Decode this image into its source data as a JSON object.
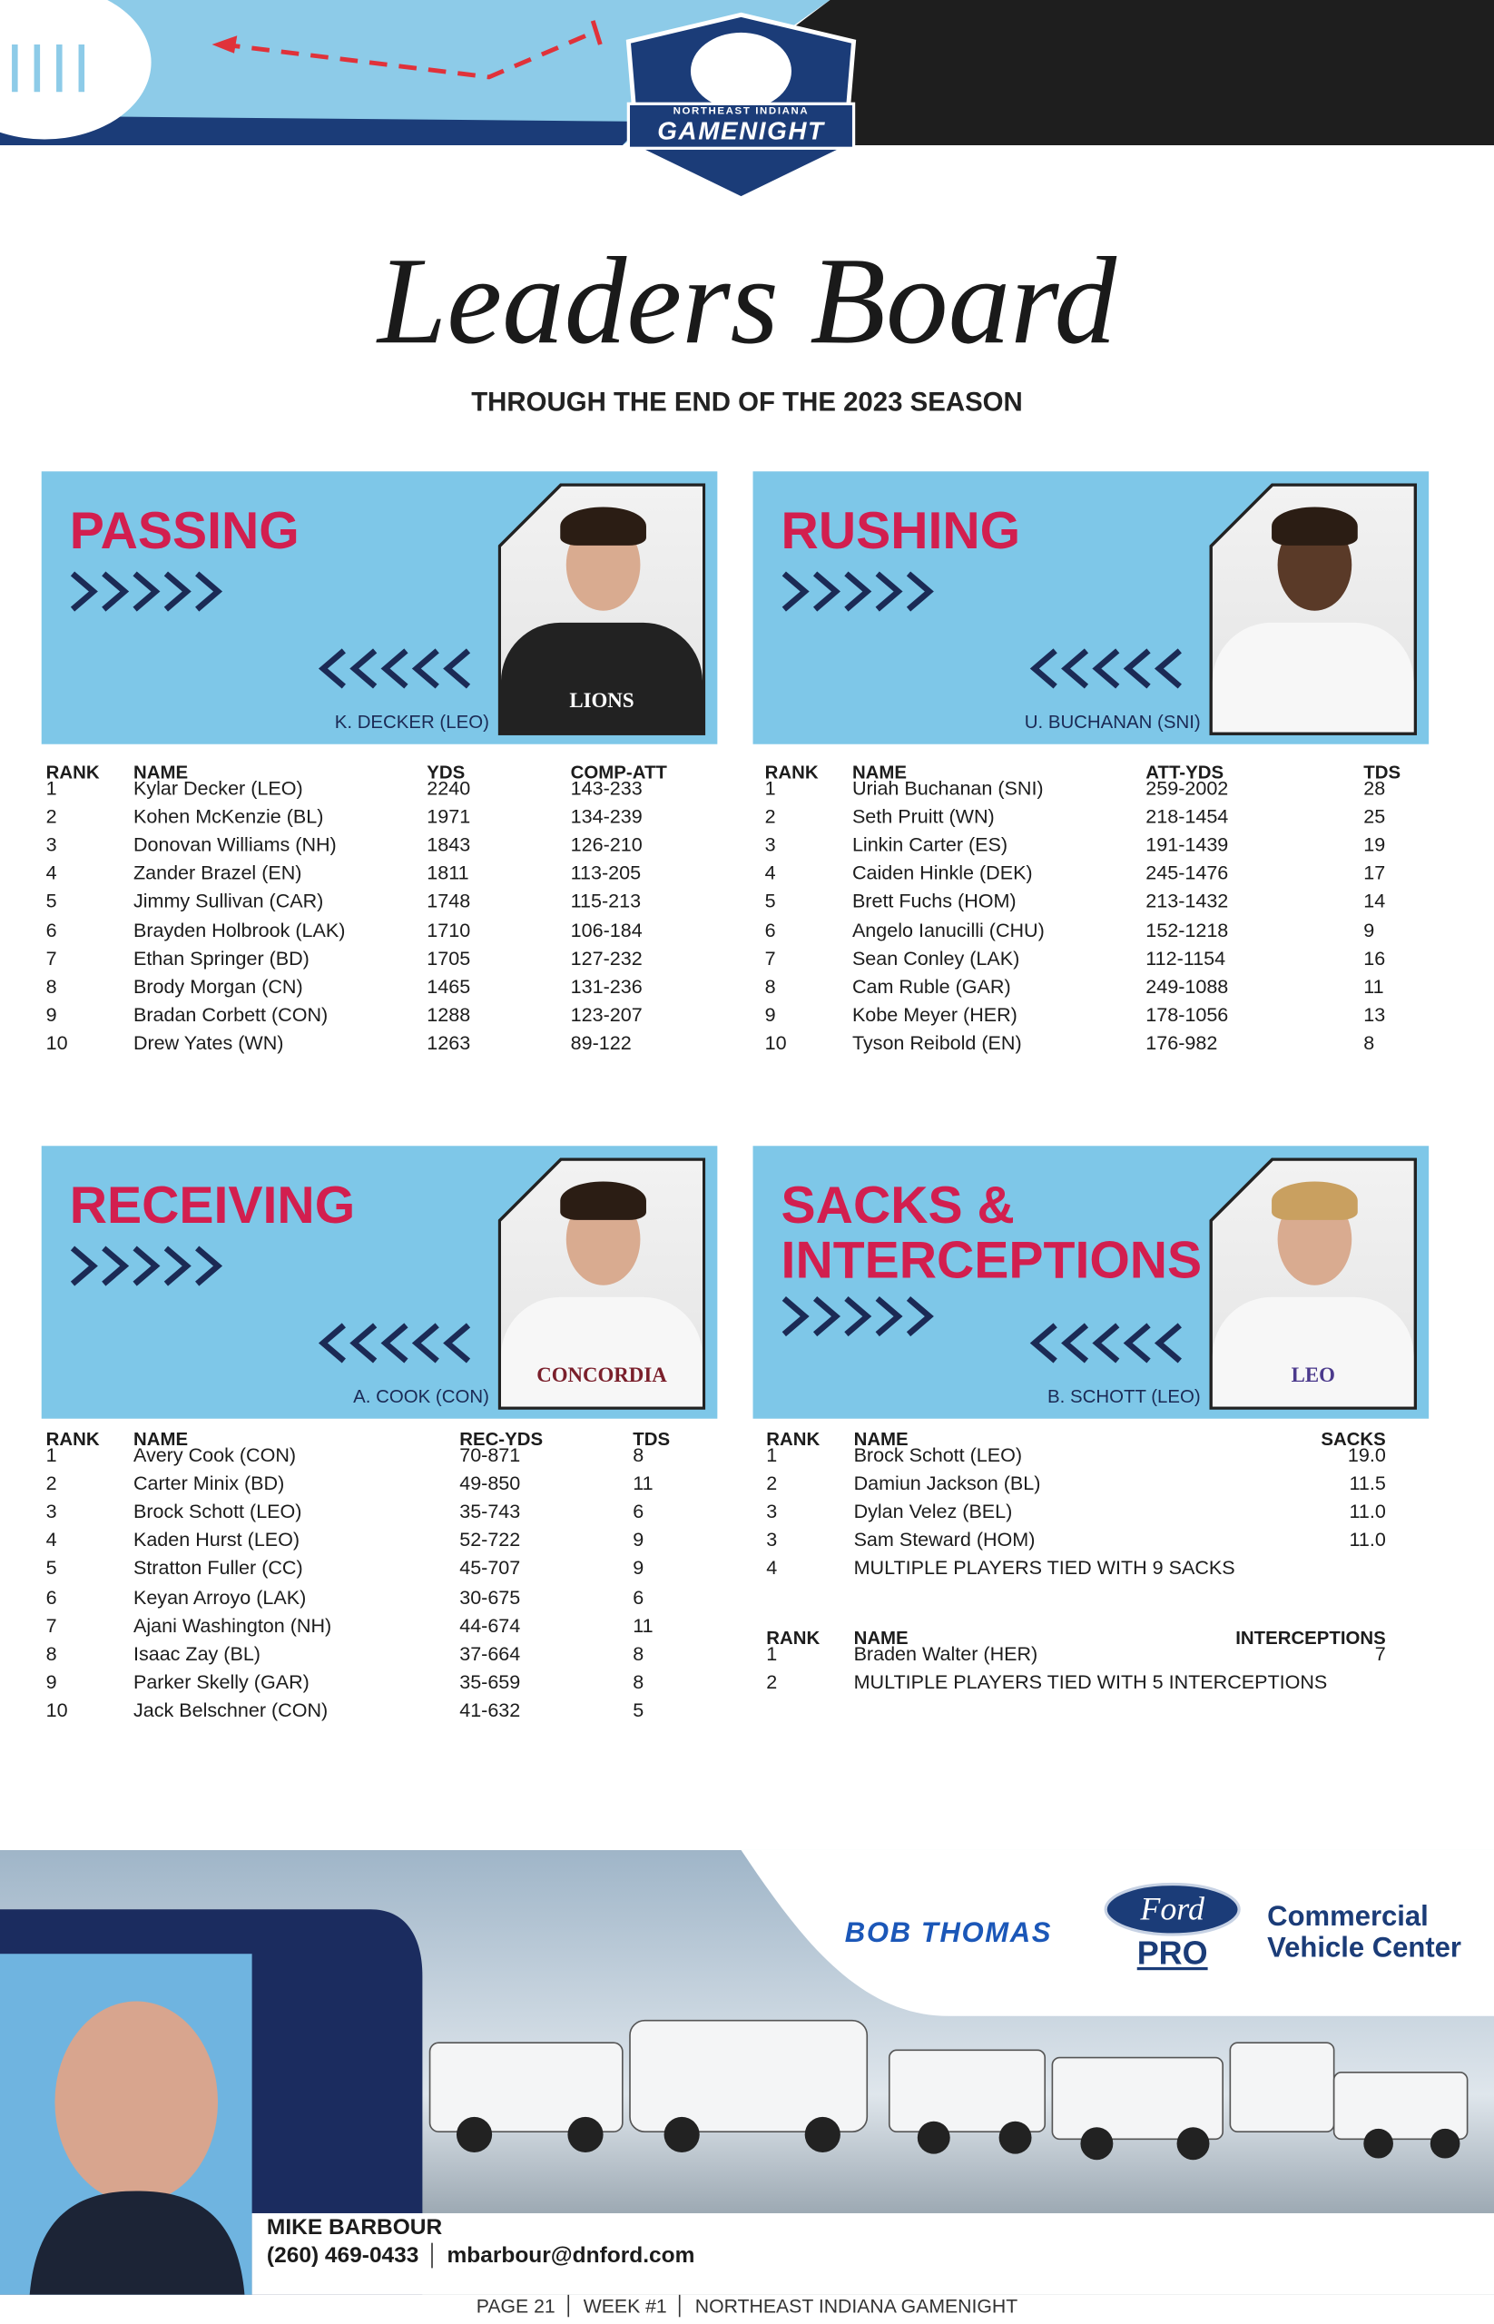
{
  "header": {
    "logo_top": "NORTHEAST INDIANA",
    "logo_main": "GAMENIGHT",
    "title": "Leaders Board",
    "subtitle": "THROUGH THE END OF THE 2023 SEASON"
  },
  "sections": [
    {
      "title": "PASSING",
      "photo_caption": "K. DECKER (LEO)",
      "jersey": "LIONS",
      "tables": [
        {
          "columns": [
            "RANK",
            "NAME",
            "YDS",
            "COMP-ATT"
          ],
          "rows": [
            [
              "1",
              "Kylar Decker (LEO)",
              "2240",
              "143-233"
            ],
            [
              "2",
              "Kohen McKenzie (BL)",
              "1971",
              "134-239"
            ],
            [
              "3",
              "Donovan Williams (NH)",
              "1843",
              "126-210"
            ],
            [
              "4",
              "Zander Brazel (EN)",
              "1811",
              "113-205"
            ],
            [
              "5",
              "Jimmy Sullivan (CAR)",
              "1748",
              "115-213"
            ],
            [
              "6",
              "Brayden Holbrook (LAK)",
              "1710",
              "106-184"
            ],
            [
              "7",
              "Ethan Springer (BD)",
              "1705",
              "127-232"
            ],
            [
              "8",
              "Brody Morgan (CN)",
              "1465",
              "131-236"
            ],
            [
              "9",
              "Bradan Corbett (CON)",
              "1288",
              "123-207"
            ],
            [
              "10",
              "Drew Yates (WN)",
              "1263",
              "89-122"
            ]
          ]
        }
      ]
    },
    {
      "title": "RUSHING",
      "photo_caption": "U. BUCHANAN (SNI)",
      "tables": [
        {
          "columns": [
            "RANK",
            "NAME",
            "ATT-YDS",
            "TDS"
          ],
          "rows": [
            [
              "1",
              "Uriah Buchanan (SNI)",
              "259-2002",
              "28"
            ],
            [
              "2",
              "Seth Pruitt (WN)",
              "218-1454",
              "25"
            ],
            [
              "3",
              "Linkin Carter (ES)",
              "191-1439",
              "19"
            ],
            [
              "4",
              "Caiden Hinkle (DEK)",
              "245-1476",
              "17"
            ],
            [
              "5",
              "Brett Fuchs (HOM)",
              "213-1432",
              "14"
            ],
            [
              "6",
              "Angelo Ianucilli (CHU)",
              "152-1218",
              "9"
            ],
            [
              "7",
              "Sean Conley (LAK)",
              "112-1154",
              "16"
            ],
            [
              "8",
              "Cam Ruble (GAR)",
              "249-1088",
              "11"
            ],
            [
              "9",
              "Kobe Meyer (HER)",
              "178-1056",
              "13"
            ],
            [
              "10",
              "Tyson Reibold (EN)",
              "176-982",
              "8"
            ]
          ]
        }
      ]
    },
    {
      "title": "RECEIVING",
      "photo_caption": "A. COOK (CON)",
      "jersey": "CONCORDIA",
      "tables": [
        {
          "columns": [
            "RANK",
            "NAME",
            "REC-YDS",
            "TDS"
          ],
          "rows": [
            [
              "1",
              "Avery Cook (CON)",
              "70-871",
              "8"
            ],
            [
              "2",
              "Carter Minix (BD)",
              "49-850",
              "11"
            ],
            [
              "3",
              "Brock Schott (LEO)",
              "35-743",
              "6"
            ],
            [
              "4",
              "Kaden Hurst (LEO)",
              "52-722",
              "9"
            ],
            [
              "5",
              "Stratton Fuller (CC)",
              "45-707",
              "9"
            ],
            [
              "6",
              "Keyan Arroyo (LAK)",
              "30-675",
              "6"
            ],
            [
              "7",
              "Ajani Washington (NH)",
              "44-674",
              "11"
            ],
            [
              "8",
              "Isaac Zay (BL)",
              "37-664",
              "8"
            ],
            [
              "9",
              "Parker Skelly (GAR)",
              "35-659",
              "8"
            ],
            [
              "10",
              "Jack Belschner (CON)",
              "41-632",
              "5"
            ]
          ]
        }
      ]
    },
    {
      "title": "SACKS & INTERCEPTIONS",
      "photo_caption": "B. SCHOTT (LEO)",
      "jersey": "LEO",
      "tables": [
        {
          "columns": [
            "RANK",
            "NAME",
            "SACKS"
          ],
          "rows": [
            [
              "1",
              "Brock Schott (LEO)",
              "19.0"
            ],
            [
              "2",
              "Damiun Jackson (BL)",
              "11.5"
            ],
            [
              "3",
              "Dylan Velez (BEL)",
              "11.0"
            ],
            [
              "3",
              "Sam Steward (HOM)",
              "11.0"
            ],
            [
              "4",
              "MULTIPLE PLAYERS TIED WITH 9 SACKS"
            ]
          ]
        },
        {
          "columns": [
            "RANK",
            "NAME",
            "INTERCEPTIONS"
          ],
          "rows": [
            [
              "1",
              "Braden Walter (HER)",
              "7"
            ],
            [
              "2",
              "MULTIPLE PLAYERS TIED WITH 5 INTERCEPTIONS"
            ]
          ]
        }
      ]
    }
  ],
  "sponsor": {
    "dealer": "BOB THOMAS",
    "ford": "Ford",
    "pro": "PRO",
    "center_line1": "Commercial",
    "center_line2": "Vehicle Center"
  },
  "contact": {
    "name": "MIKE BARBOUR",
    "phone": "(260) 469-0433",
    "email": "mbarbour@dnford.com"
  },
  "footer": {
    "page": "PAGE 21",
    "week": "WEEK #1",
    "publication": "NORTHEAST INDIANA GAMENIGHT"
  }
}
